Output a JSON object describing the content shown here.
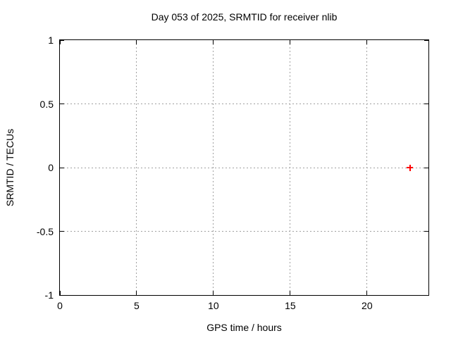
{
  "chart_data": {
    "type": "scatter",
    "title": "Day 053 of 2025, SRMTID for receiver nlib",
    "xlabel": "GPS time / hours",
    "ylabel": "SRMTID / TECUs",
    "xlim": [
      0,
      24
    ],
    "ylim": [
      -1,
      1
    ],
    "xticks": [
      0,
      5,
      10,
      15,
      20
    ],
    "yticks": [
      -1,
      -0.5,
      0,
      0.5,
      1
    ],
    "grid": {
      "show": true,
      "style": "dashed",
      "color": "#a0a0a0",
      "x_values": [
        5,
        10,
        15,
        20
      ],
      "y_values": [
        -0.5,
        0,
        0.5
      ]
    },
    "series": [
      {
        "name": "SRMTID",
        "marker": "plus",
        "color": "#ff0000",
        "points": [
          {
            "x": 22.8,
            "y": 0.0
          }
        ]
      }
    ],
    "background": "#ffffff",
    "border_color": "#000000",
    "text_color": "#000000",
    "legend": "none"
  }
}
